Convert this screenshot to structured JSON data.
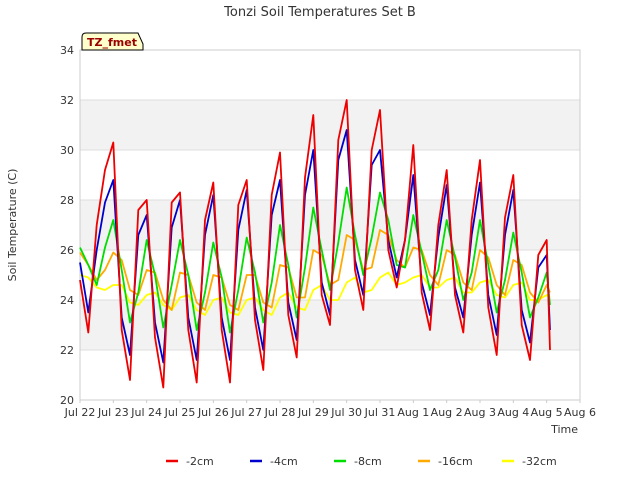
{
  "chart_data": {
    "type": "line",
    "title": "Tonzi Soil Temperatures Set B",
    "xlabel": "Time",
    "ylabel": "Soil Temperature (C)",
    "badge": "TZ_fmet",
    "ylim": [
      20,
      34
    ],
    "yticks": [
      20,
      22,
      24,
      26,
      28,
      30,
      32,
      34
    ],
    "xlim": [
      0,
      15
    ],
    "xticks": [
      {
        "x": 0,
        "label": "Jul 22"
      },
      {
        "x": 1,
        "label": "Jul 23"
      },
      {
        "x": 2,
        "label": "Jul 24"
      },
      {
        "x": 3,
        "label": "Jul 25"
      },
      {
        "x": 4,
        "label": "Jul 26"
      },
      {
        "x": 5,
        "label": "Jul 27"
      },
      {
        "x": 6,
        "label": "Jul 28"
      },
      {
        "x": 7,
        "label": "Jul 29"
      },
      {
        "x": 8,
        "label": "Jul 30"
      },
      {
        "x": 9,
        "label": "Jul 31"
      },
      {
        "x": 10,
        "label": "Aug 1"
      },
      {
        "x": 11,
        "label": "Aug 2"
      },
      {
        "x": 12,
        "label": "Aug 3"
      },
      {
        "x": 13,
        "label": "Aug 4"
      },
      {
        "x": 14,
        "label": "Aug 5"
      },
      {
        "x": 15,
        "label": "Aug 6"
      }
    ],
    "grid": true,
    "legend": "bottom",
    "x": [
      0,
      0.25,
      0.5,
      0.75,
      1,
      1.25,
      1.5,
      1.75,
      2,
      2.25,
      2.5,
      2.75,
      3,
      3.25,
      3.5,
      3.75,
      4,
      4.25,
      4.5,
      4.75,
      5,
      5.25,
      5.5,
      5.75,
      6,
      6.25,
      6.5,
      6.75,
      7,
      7.25,
      7.5,
      7.75,
      8,
      8.25,
      8.5,
      8.75,
      9,
      9.25,
      9.5,
      9.75,
      10,
      10.25,
      10.5,
      10.75,
      11,
      11.25,
      11.5,
      11.75,
      12,
      12.25,
      12.5,
      12.75,
      13,
      13.25,
      13.5,
      13.75,
      14,
      14.1
    ],
    "series": [
      {
        "name": "-2cm",
        "color": "#ee0000",
        "values": [
          24.8,
          22.7,
          27.0,
          29.2,
          30.3,
          22.8,
          20.8,
          27.6,
          28.0,
          22.5,
          20.5,
          27.9,
          28.3,
          22.8,
          20.7,
          27.2,
          28.7,
          22.8,
          20.7,
          27.8,
          28.8,
          23.2,
          21.2,
          28.2,
          29.9,
          23.4,
          21.7,
          28.9,
          31.4,
          24.2,
          23.0,
          30.4,
          32.0,
          25.2,
          23.6,
          30.0,
          31.6,
          26.0,
          24.5,
          26.4,
          30.2,
          24.3,
          22.8,
          27.0,
          29.2,
          24.2,
          22.7,
          27.2,
          29.6,
          23.7,
          21.8,
          27.3,
          29.0,
          23.0,
          21.6,
          25.8,
          26.4,
          22.0
        ]
      },
      {
        "name": "-4cm",
        "color": "#0000cc",
        "values": [
          25.5,
          23.5,
          26.0,
          27.9,
          28.8,
          23.3,
          21.8,
          26.6,
          27.4,
          23.1,
          21.5,
          26.9,
          28.0,
          23.3,
          21.6,
          26.6,
          28.2,
          23.3,
          21.6,
          26.8,
          28.4,
          23.7,
          22.0,
          27.4,
          28.8,
          23.9,
          22.4,
          28.2,
          30.0,
          24.7,
          23.4,
          29.6,
          30.8,
          25.6,
          24.2,
          29.4,
          30.0,
          26.4,
          24.9,
          26.4,
          29.0,
          24.7,
          23.4,
          26.5,
          28.6,
          24.5,
          23.3,
          26.6,
          28.7,
          24.2,
          22.6,
          26.6,
          28.4,
          23.6,
          22.3,
          25.3,
          25.8,
          22.8
        ]
      },
      {
        "name": "-8cm",
        "color": "#00dd00",
        "values": [
          26.1,
          25.4,
          24.6,
          26.1,
          27.2,
          25.2,
          23.1,
          24.3,
          26.4,
          25.0,
          22.9,
          24.6,
          26.4,
          25.0,
          22.8,
          24.3,
          26.3,
          24.9,
          22.7,
          24.4,
          26.5,
          25.1,
          23.1,
          24.7,
          27.0,
          25.4,
          23.3,
          25.3,
          27.7,
          26.0,
          24.4,
          26.3,
          28.5,
          26.6,
          25.0,
          26.5,
          28.3,
          27.2,
          25.4,
          25.3,
          27.4,
          25.9,
          24.4,
          25.2,
          27.2,
          25.7,
          24.0,
          25.1,
          27.2,
          25.4,
          23.5,
          24.8,
          26.7,
          25.1,
          23.3,
          24.1,
          25.1,
          23.8
        ]
      },
      {
        "name": "-16cm",
        "color": "#ffaa00",
        "values": [
          25.9,
          25.4,
          24.8,
          25.2,
          25.9,
          25.6,
          24.4,
          24.2,
          25.2,
          25.1,
          24.0,
          23.6,
          25.1,
          25.0,
          23.9,
          23.6,
          25.0,
          24.9,
          23.8,
          23.6,
          25.0,
          25.0,
          23.9,
          23.7,
          25.4,
          25.3,
          24.1,
          24.1,
          26.0,
          25.8,
          24.6,
          24.8,
          26.6,
          26.4,
          25.2,
          25.3,
          26.8,
          26.6,
          25.6,
          25.3,
          26.1,
          26.0,
          25.0,
          24.6,
          26.0,
          25.8,
          24.7,
          24.4,
          26.0,
          25.7,
          24.6,
          24.2,
          25.6,
          25.4,
          24.3,
          23.9,
          24.6,
          24.3
        ]
      },
      {
        "name": "-32cm",
        "color": "#ffff00",
        "values": [
          25.0,
          24.9,
          24.5,
          24.4,
          24.6,
          24.6,
          23.9,
          23.8,
          24.2,
          24.3,
          23.8,
          23.6,
          24.1,
          24.2,
          23.6,
          23.4,
          24.0,
          24.1,
          23.5,
          23.4,
          24.0,
          24.1,
          23.6,
          23.4,
          24.1,
          24.3,
          23.7,
          23.6,
          24.4,
          24.6,
          24.0,
          24.0,
          24.7,
          24.9,
          24.3,
          24.4,
          24.9,
          25.1,
          24.6,
          24.7,
          24.9,
          25.0,
          24.5,
          24.5,
          24.8,
          24.9,
          24.3,
          24.3,
          24.7,
          24.8,
          24.2,
          24.1,
          24.6,
          24.7,
          24.0,
          24.0,
          24.2,
          24.1
        ]
      }
    ]
  }
}
